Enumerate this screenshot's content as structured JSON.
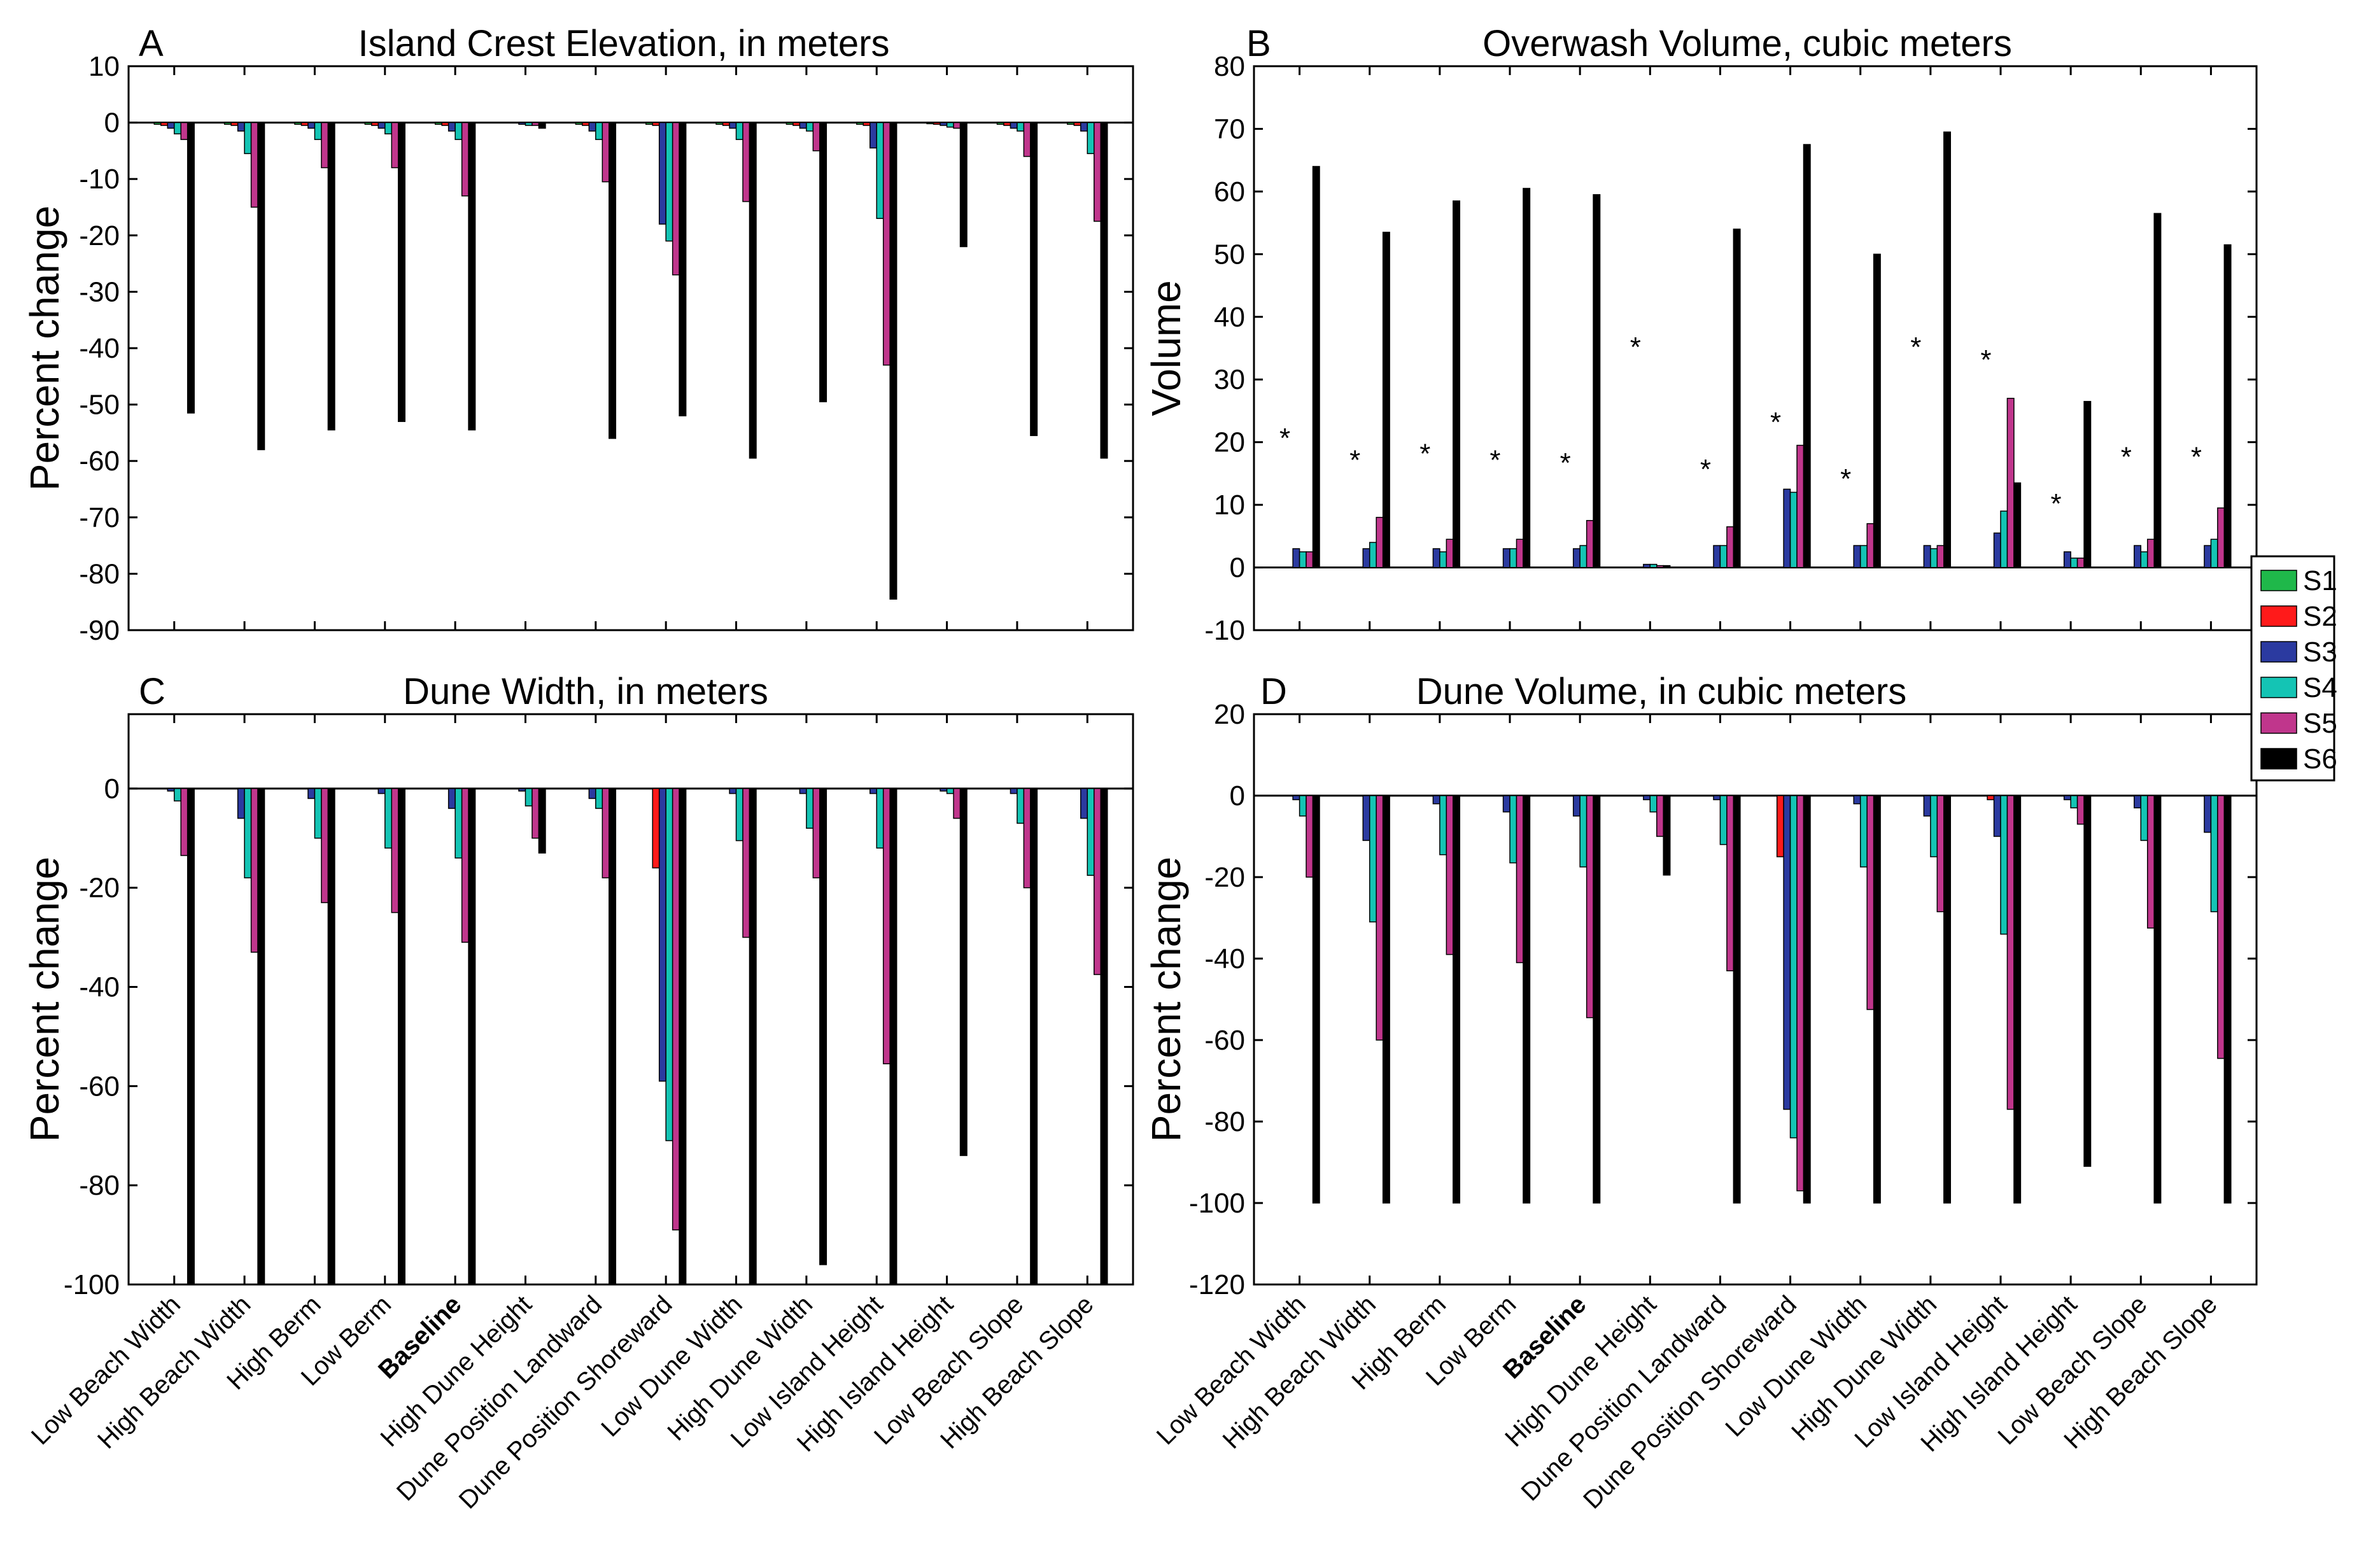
{
  "figure": {
    "legend": [
      {
        "name": "S1",
        "color": "#1fb84a"
      },
      {
        "name": "S2",
        "color": "#ff1a1a"
      },
      {
        "name": "S3",
        "color": "#2b3aa0"
      },
      {
        "name": "S4",
        "color": "#14c4b4"
      },
      {
        "name": "S5",
        "color": "#c0368c"
      },
      {
        "name": "S6",
        "color": "#000000"
      }
    ],
    "bold_category": "Baseline"
  },
  "chart_data": [
    {
      "panel": "A",
      "type": "bar",
      "title": "Island Crest Elevation, in meters",
      "ylabel": "Percent change",
      "xlabel": "",
      "ylim": [
        -90,
        10
      ],
      "yticks": [
        10,
        0,
        -10,
        -20,
        -30,
        -40,
        -50,
        -60,
        -70,
        -80,
        -90
      ],
      "legend_position": "right",
      "categories": [
        "Low Beach Width",
        "High Beach Width",
        "High Berm",
        "Low Berm",
        "Baseline",
        "High Dune Height",
        "Dune Position Landward",
        "Dune Position Shoreward",
        "Low Dune Width",
        "High Dune Width",
        "Low Island Height",
        "High Island Height",
        "Low Beach Slope",
        "High Beach Slope"
      ],
      "series": [
        {
          "name": "S1",
          "values": [
            -0.3,
            -0.3,
            -0.3,
            -0.3,
            -0.3,
            0,
            -0.3,
            -0.3,
            -0.3,
            -0.3,
            -0.3,
            -0.2,
            -0.3,
            -0.3
          ]
        },
        {
          "name": "S2",
          "values": [
            -0.5,
            -0.5,
            -0.5,
            -0.5,
            -0.5,
            0,
            -0.5,
            -0.5,
            -0.5,
            -0.5,
            -0.5,
            -0.3,
            -0.5,
            -0.5
          ]
        },
        {
          "name": "S3",
          "values": [
            -1,
            -1.5,
            -1,
            -1,
            -1.5,
            -0.3,
            -1.5,
            -18,
            -1,
            -1,
            -4.5,
            -0.5,
            -1,
            -1.5
          ]
        },
        {
          "name": "S4",
          "values": [
            -2,
            -5.5,
            -3,
            -2,
            -3,
            -0.5,
            -3,
            -21,
            -3,
            -1.5,
            -17,
            -0.8,
            -1.5,
            -5.5
          ]
        },
        {
          "name": "S5",
          "values": [
            -3,
            -15,
            -8,
            -8,
            -13,
            -0.5,
            -10.5,
            -27,
            -14,
            -5,
            -43,
            -1,
            -6,
            -17.5
          ]
        },
        {
          "name": "S6",
          "values": [
            -51.5,
            -58,
            -54.5,
            -53,
            -54.5,
            -1,
            -56,
            -52,
            -59.5,
            -49.5,
            -84.5,
            -22,
            -55.5,
            -59.5
          ]
        }
      ]
    },
    {
      "panel": "B",
      "type": "bar",
      "title": "Overwash Volume, cubic meters",
      "ylabel": "Volume",
      "xlabel": "",
      "ylim": [
        -10,
        80
      ],
      "yticks": [
        80,
        70,
        60,
        50,
        40,
        30,
        20,
        10,
        0,
        -10
      ],
      "legend_position": "right",
      "categories": [
        "Low Beach Width",
        "High Beach Width",
        "High Berm",
        "Low Berm",
        "Baseline",
        "High Dune Height",
        "Dune Position Landward",
        "Dune Position Shoreward",
        "Low Dune Width",
        "High Dune Width",
        "Low Island Height",
        "High Island Height",
        "Low Beach Slope",
        "High Beach Slope"
      ],
      "series": [
        {
          "name": "S1",
          "values": [
            0,
            0,
            0,
            0,
            0,
            0,
            0,
            0,
            0,
            0,
            0,
            0,
            0,
            0
          ]
        },
        {
          "name": "S2",
          "values": [
            0,
            0,
            0,
            0,
            0,
            0,
            0,
            0,
            0,
            0,
            0,
            0,
            0,
            0
          ]
        },
        {
          "name": "S3",
          "values": [
            3,
            3,
            3,
            3,
            3,
            0.5,
            3.5,
            12.5,
            3.5,
            3.5,
            5.5,
            2.5,
            3.5,
            3.5
          ]
        },
        {
          "name": "S4",
          "values": [
            2.5,
            4,
            2.5,
            3,
            3.5,
            0.5,
            3.5,
            12,
            3.5,
            3,
            9,
            1.5,
            2.5,
            4.5
          ]
        },
        {
          "name": "S5",
          "values": [
            2.5,
            8,
            4.5,
            4.5,
            7.5,
            0.3,
            6.5,
            19.5,
            7,
            3.5,
            27,
            1.5,
            4.5,
            9.5
          ]
        },
        {
          "name": "S6",
          "values": [
            64,
            53.5,
            58.5,
            60.5,
            59.5,
            0.3,
            54,
            67.5,
            50,
            69.5,
            13.5,
            26.5,
            56.5,
            51.5
          ]
        }
      ],
      "markers": [
        {
          "category": "Low Beach Width",
          "y": 21,
          "label": "*"
        },
        {
          "category": "High Beach Width",
          "y": 17.5,
          "label": "*"
        },
        {
          "category": "High Berm",
          "y": 18.5,
          "label": "*"
        },
        {
          "category": "Low Berm",
          "y": 17.5,
          "label": "*"
        },
        {
          "category": "Baseline",
          "y": 17,
          "label": "*"
        },
        {
          "category": "High Dune Height",
          "y": 35.5,
          "label": "*"
        },
        {
          "category": "Dune Position Landward",
          "y": 16,
          "label": "*"
        },
        {
          "category": "Dune Position Shoreward",
          "y": 23.5,
          "label": "*"
        },
        {
          "category": "Low Dune Width",
          "y": 14.5,
          "label": "*"
        },
        {
          "category": "High Dune Width",
          "y": 35.5,
          "label": "*"
        },
        {
          "category": "Low Island Height",
          "y": 33.5,
          "label": "*"
        },
        {
          "category": "High Island Height",
          "y": 10.5,
          "label": "*"
        },
        {
          "category": "Low Beach Slope",
          "y": 18,
          "label": "*"
        },
        {
          "category": "High Beach Slope",
          "y": 18,
          "label": "*"
        }
      ]
    },
    {
      "panel": "C",
      "type": "bar",
      "title": "Dune Width, in meters",
      "ylabel": "Percent change",
      "xlabel": "",
      "ylim": [
        -100,
        15
      ],
      "yticks": [
        0,
        -20,
        -40,
        -60,
        -80,
        -100
      ],
      "legend_position": "right",
      "categories": [
        "Low Beach Width",
        "High Beach Width",
        "High Berm",
        "Low Berm",
        "Baseline",
        "High Dune Height",
        "Dune Position Landward",
        "Dune Position Shoreward",
        "Low Dune Width",
        "High Dune Width",
        "Low Island Height",
        "High Island Height",
        "Low Beach Slope",
        "High Beach Slope"
      ],
      "series": [
        {
          "name": "S1",
          "values": [
            0,
            0,
            0,
            0,
            0,
            0,
            0,
            0,
            0,
            0,
            0,
            0,
            0,
            0
          ]
        },
        {
          "name": "S2",
          "values": [
            0,
            0,
            0,
            0,
            0,
            0,
            0,
            -16,
            0,
            0,
            0,
            0,
            0,
            0
          ]
        },
        {
          "name": "S3",
          "values": [
            -0.5,
            -6,
            -2,
            -1,
            -4,
            -0.5,
            -2,
            -59,
            -1,
            -1,
            -1,
            -0.5,
            -1,
            -6
          ]
        },
        {
          "name": "S4",
          "values": [
            -2.5,
            -18,
            -10,
            -12,
            -14,
            -3.5,
            -4,
            -71,
            -10.5,
            -8,
            -12,
            -1,
            -7,
            -17.5
          ]
        },
        {
          "name": "S5",
          "values": [
            -13.5,
            -33,
            -23,
            -25,
            -31,
            -10,
            -18,
            -89,
            -30,
            -18,
            -55.5,
            -6,
            -20,
            -37.5
          ]
        },
        {
          "name": "S6",
          "values": [
            -100,
            -100,
            -100,
            -100,
            -100,
            -13,
            -100,
            -100,
            -100,
            -96,
            -100,
            -74,
            -100,
            -100
          ]
        }
      ]
    },
    {
      "panel": "D",
      "type": "bar",
      "title": "Dune Volume, in cubic meters",
      "ylabel": "Percent change",
      "xlabel": "",
      "ylim": [
        -120,
        20
      ],
      "yticks": [
        20,
        0,
        -20,
        -40,
        -60,
        -80,
        -100,
        -120
      ],
      "legend_position": "right",
      "categories": [
        "Low Beach Width",
        "High Beach Width",
        "High Berm",
        "Low Berm",
        "Baseline",
        "High Dune Height",
        "Dune Position Landward",
        "Dune Position Shoreward",
        "Low Dune Width",
        "High Dune Width",
        "Low Island Height",
        "High Island Height",
        "Low Beach Slope",
        "High Beach Slope"
      ],
      "series": [
        {
          "name": "S1",
          "values": [
            0,
            0,
            0,
            0,
            0,
            0,
            0,
            0,
            0,
            0,
            0,
            0,
            0,
            0
          ]
        },
        {
          "name": "S2",
          "values": [
            0,
            0,
            0,
            0,
            0,
            0,
            0,
            -15,
            0,
            0,
            -1,
            0,
            0,
            0
          ]
        },
        {
          "name": "S3",
          "values": [
            -1,
            -11,
            -2,
            -4,
            -5,
            -1,
            -1,
            -77,
            -2,
            -5,
            -10,
            -1,
            -3,
            -9
          ]
        },
        {
          "name": "S4",
          "values": [
            -5,
            -31,
            -14.5,
            -16.5,
            -17.5,
            -4,
            -12,
            -84,
            -17.5,
            -15,
            -34,
            -3,
            -11,
            -28.5
          ]
        },
        {
          "name": "S5",
          "values": [
            -20,
            -60,
            -39,
            -41,
            -54.5,
            -10,
            -43,
            -97,
            -52.5,
            -28.5,
            -77,
            -7,
            -32.5,
            -64.5
          ]
        },
        {
          "name": "S6",
          "values": [
            -100,
            -100,
            -100,
            -100,
            -100,
            -19.5,
            -100,
            -100,
            -100,
            -100,
            -100,
            -91,
            -100,
            -100
          ]
        }
      ]
    }
  ]
}
